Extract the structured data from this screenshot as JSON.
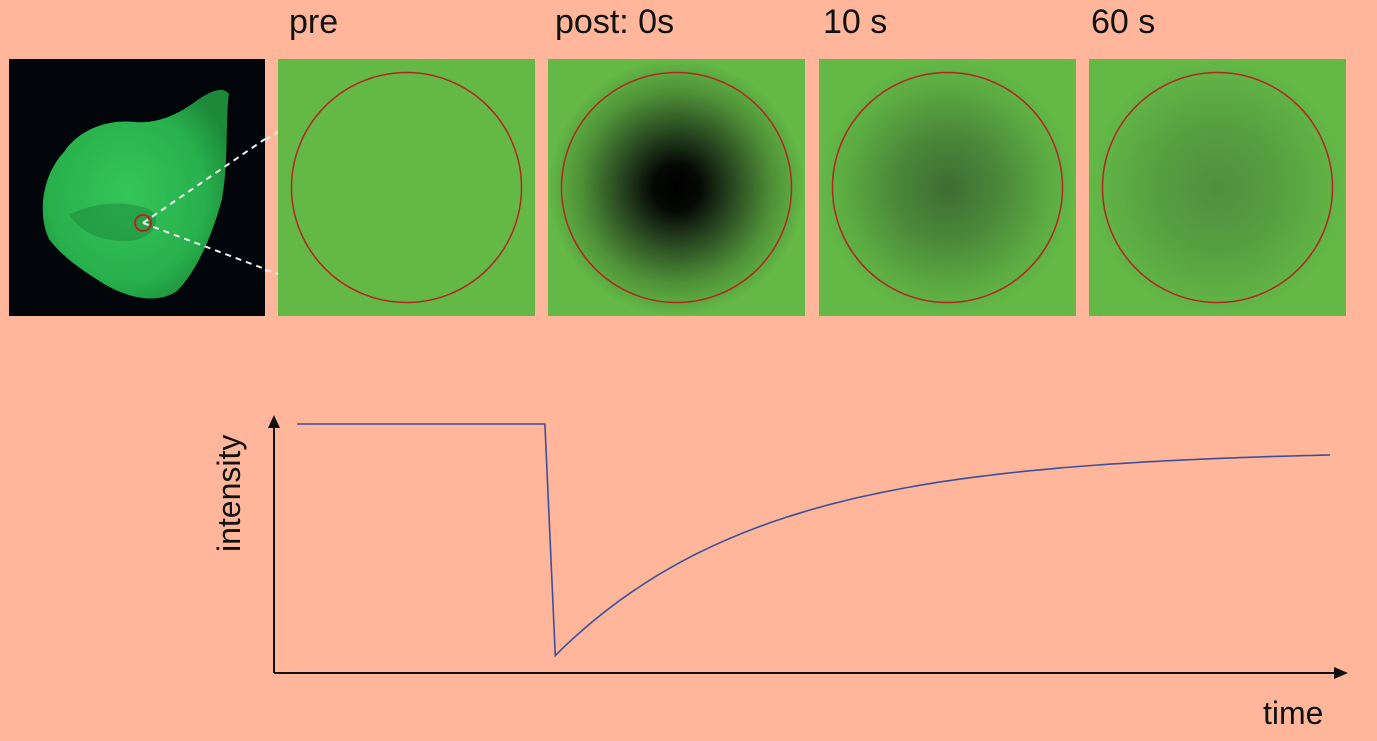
{
  "panels": [
    {
      "label": "pre",
      "center_darkness": 0.0
    },
    {
      "label": "post: 0s",
      "center_darkness": 1.0
    },
    {
      "label": "10 s",
      "center_darkness": 0.4
    },
    {
      "label": "60 s",
      "center_darkness": 0.2
    }
  ],
  "plot": {
    "ylabel": "intensity",
    "xlabel": "time"
  },
  "chart_data": {
    "type": "line",
    "xlabel": "time",
    "ylabel": "intensity",
    "grid": false,
    "series": [
      {
        "x": [
          0,
          0.24,
          0.24,
          0.25,
          0.35,
          0.45,
          0.55,
          0.65,
          0.75,
          0.85,
          1.0
        ],
        "y": [
          1.0,
          1.0,
          0.92,
          0.07,
          0.41,
          0.62,
          0.75,
          0.82,
          0.86,
          0.88,
          0.89
        ]
      }
    ]
  },
  "colors": {
    "background": "#ffb69b",
    "panel_green": "#63b846",
    "roi_circle": "#b3261e",
    "curve": "#3c4f9a",
    "cell_green": "#2dbb4f"
  }
}
